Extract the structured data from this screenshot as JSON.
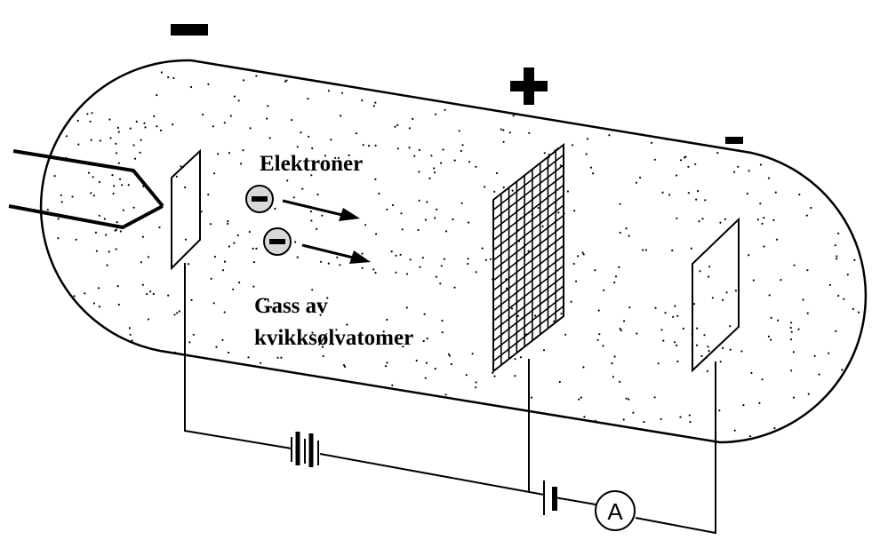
{
  "labels": {
    "electrons": "Elektroner",
    "gas_line1": "Gass av",
    "gas_line2": "kvikksølvatomer",
    "ammeter": "A"
  },
  "signs": {
    "cathode": "−",
    "grid": "+",
    "collector": "−"
  },
  "icons": {
    "electron": "minus-circle-icon",
    "battery": "battery-icon",
    "ammeter": "ammeter-icon"
  },
  "colors": {
    "electron_fill": "#d9d9d9",
    "stroke": "#000000",
    "background": "#ffffff"
  }
}
